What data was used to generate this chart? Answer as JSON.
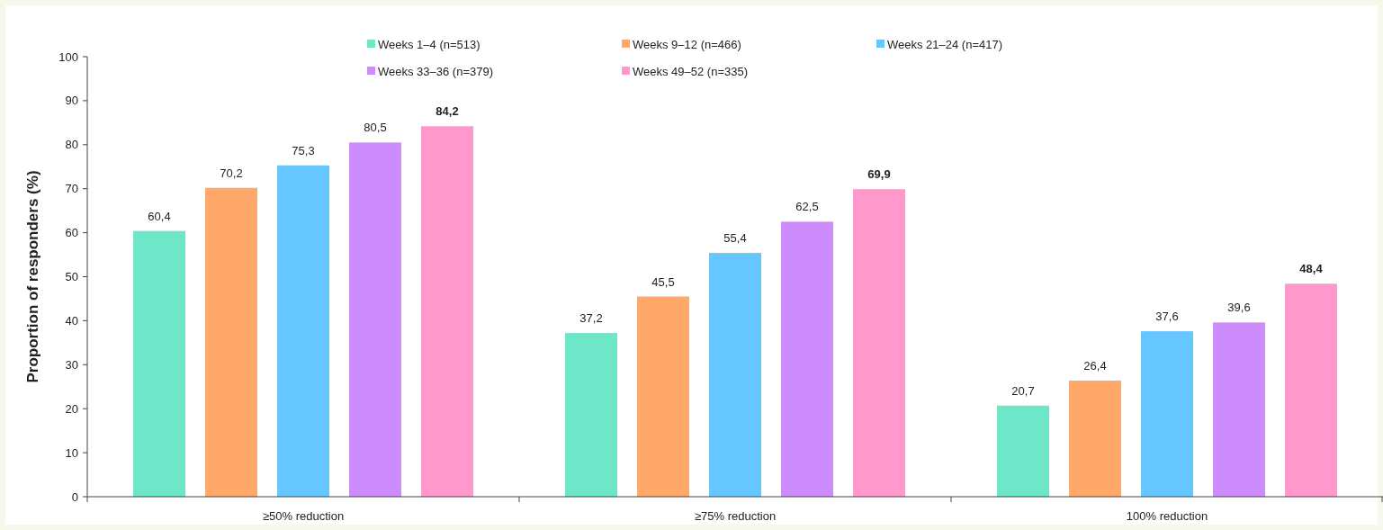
{
  "chart_data": {
    "type": "bar",
    "ylabel": "Proportion of responders (%)",
    "categories": [
      "≥50% reduction",
      "≥75% reduction",
      "100% reduction"
    ],
    "series": [
      {
        "name": "Weeks 1–4 (n=513)",
        "color": "#6ee6c8",
        "values": [
          60.4,
          37.2,
          20.7
        ],
        "value_labels": [
          "60,4",
          "37,2",
          "20,7"
        ]
      },
      {
        "name": "Weeks 9–12 (n=466)",
        "color": "#ffa86a",
        "values": [
          70.2,
          45.5,
          26.4
        ],
        "value_labels": [
          "70,2",
          "45,5",
          "26,4"
        ]
      },
      {
        "name": "Weeks 21–24 (n=417)",
        "color": "#66c6ff",
        "values": [
          75.3,
          55.4,
          37.6
        ],
        "value_labels": [
          "75,3",
          "55,4",
          "37,6"
        ]
      },
      {
        "name": "Weeks 33–36 (n=379)",
        "color": "#cc8cfc",
        "values": [
          80.5,
          62.5,
          39.6
        ],
        "value_labels": [
          "80,5",
          "62,5",
          "39,6"
        ]
      },
      {
        "name": "Weeks 49–52 (n=335)",
        "color": "#ff99cc",
        "values": [
          84.2,
          69.9,
          48.4
        ],
        "value_labels": [
          "84,2",
          "69,9",
          "48,4"
        ]
      }
    ],
    "ylim": [
      0,
      100
    ],
    "yticks": [
      0,
      10,
      20,
      30,
      40,
      50,
      60,
      70,
      80,
      90,
      100
    ],
    "grid": false,
    "legend": "top"
  }
}
